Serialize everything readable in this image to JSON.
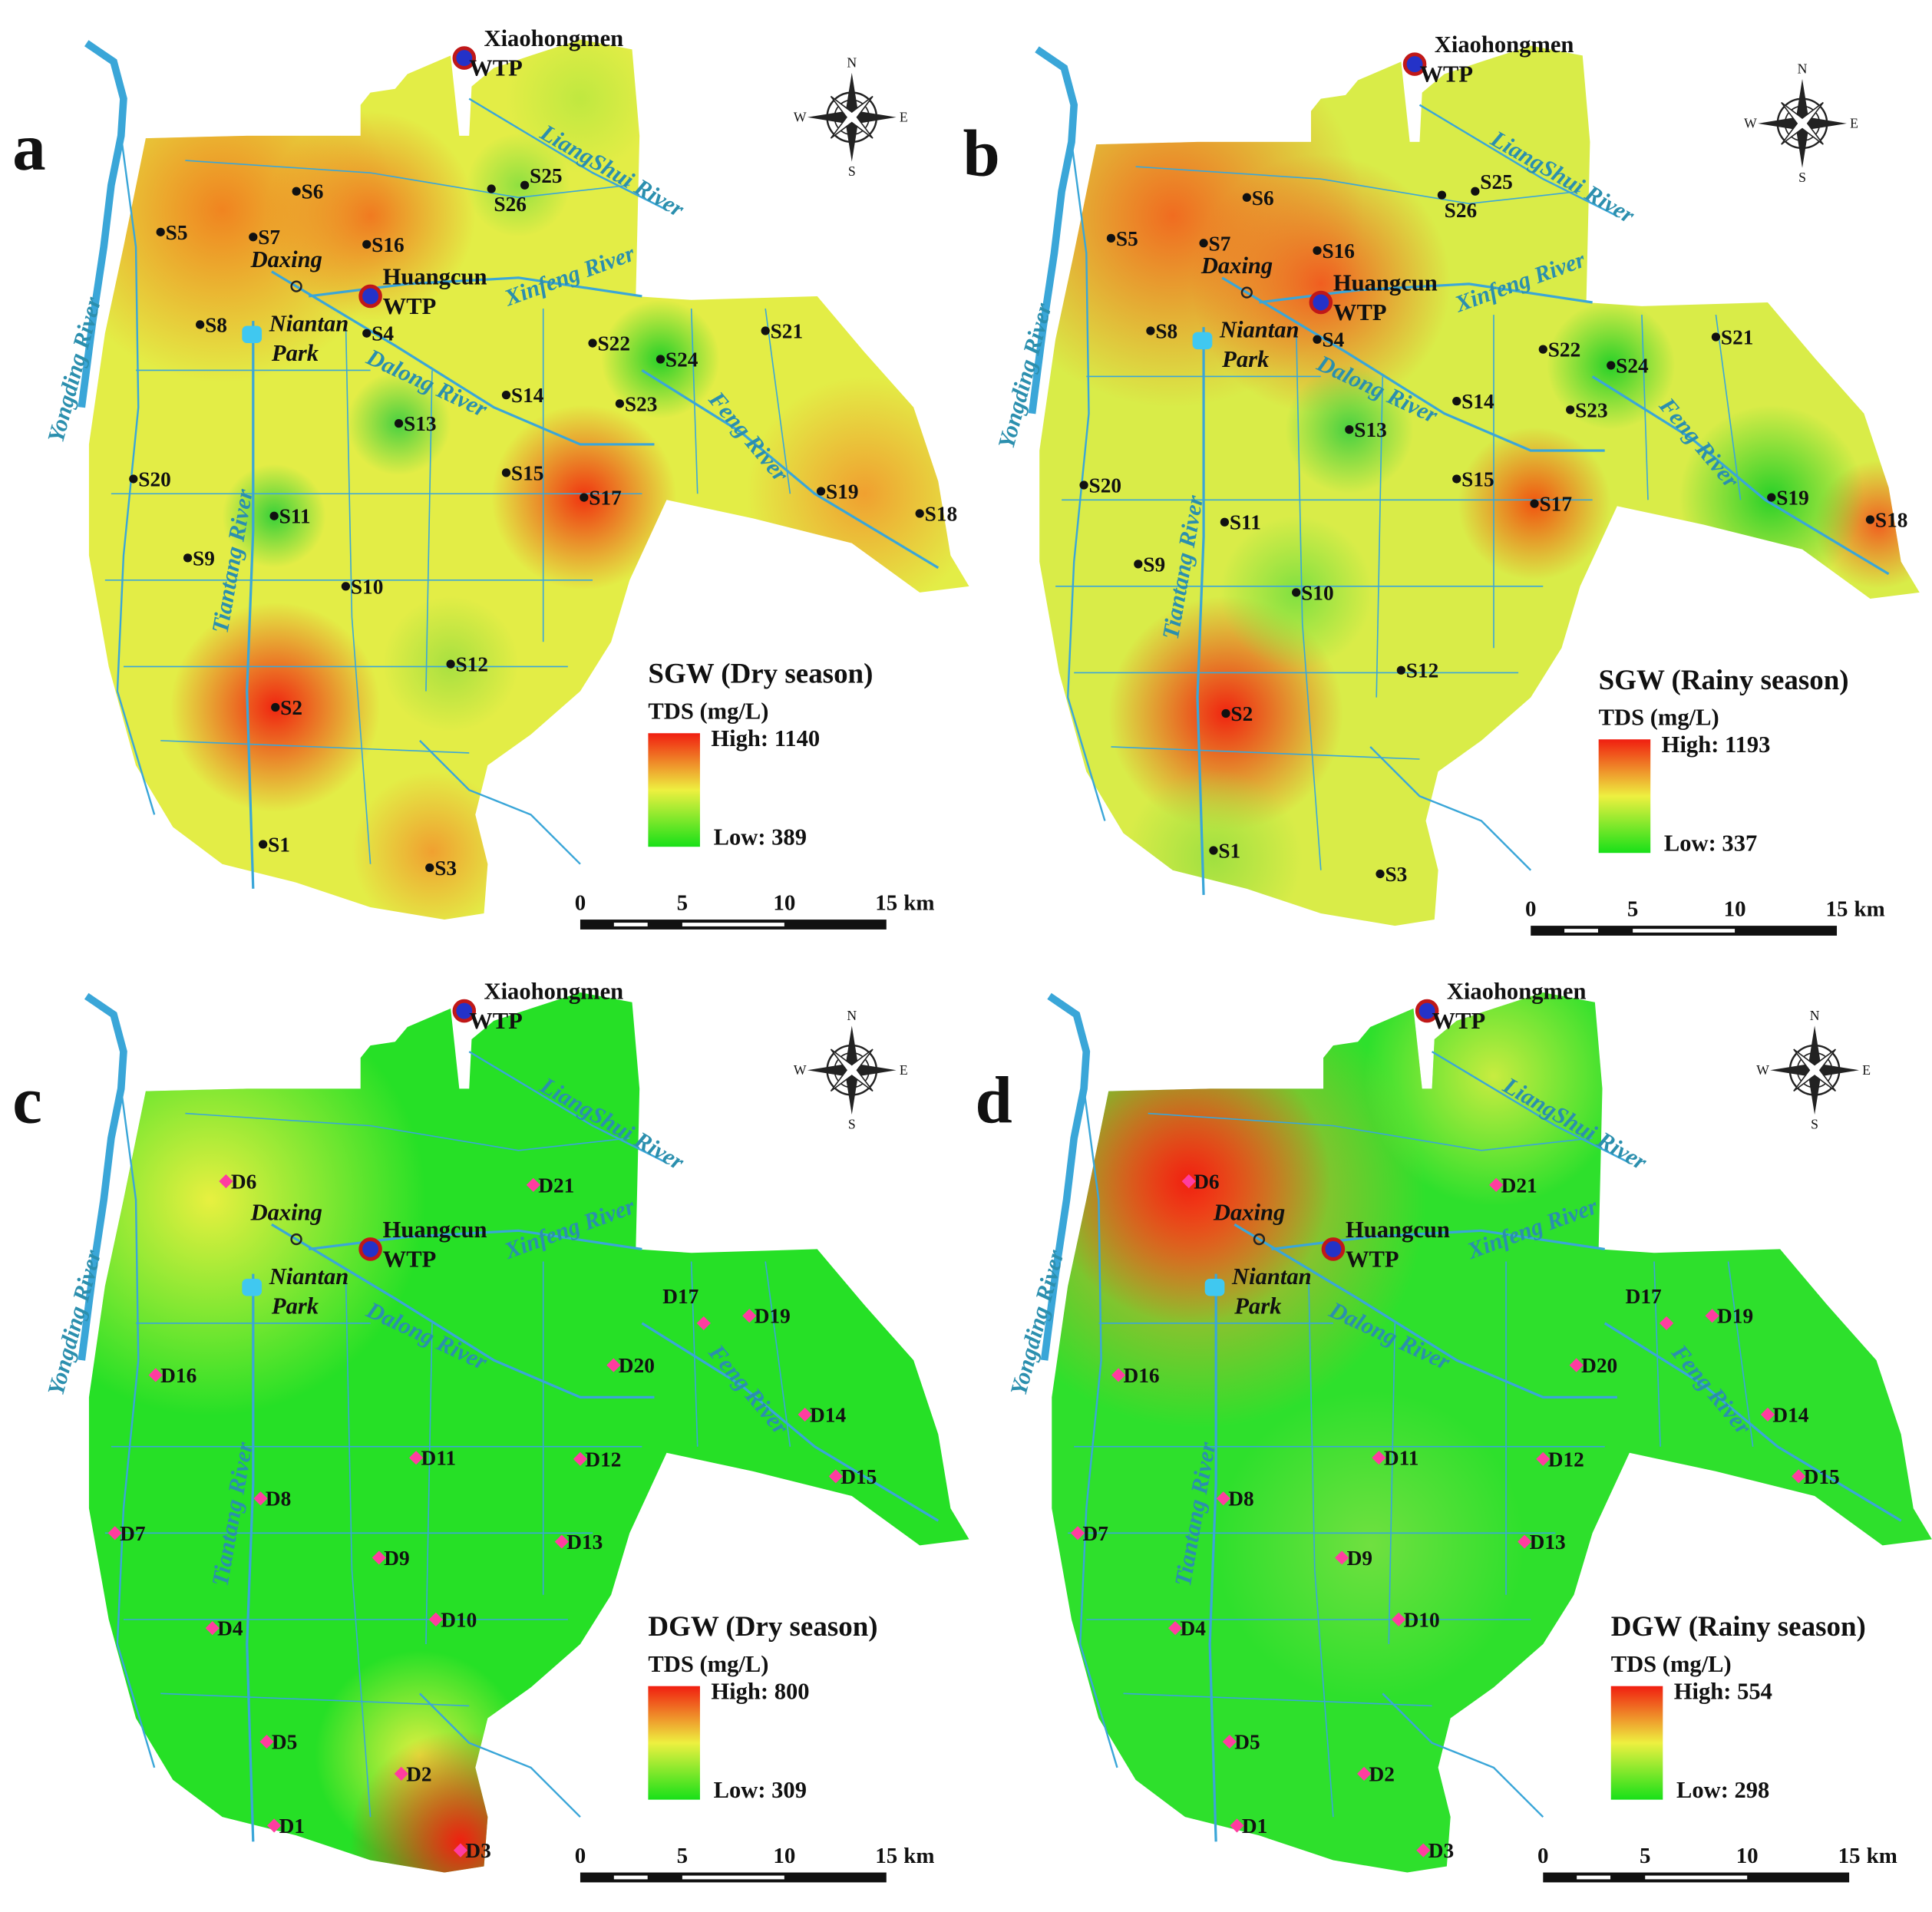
{
  "places": {
    "xiaohongmen": "Xiaohongmen",
    "wtp": "WTP",
    "daxing": "Daxing",
    "huangcun": "Huangcun",
    "niantan": "Niantan",
    "park": "Park"
  },
  "rivers": [
    "Yongding River",
    "Tiantang River",
    "Dalong River",
    "Xinfeng River",
    "LiangShui River",
    "Feng River"
  ],
  "compass": {
    "n": "N",
    "e": "E",
    "s": "S",
    "w": "W"
  },
  "scale_bar": {
    "ticks": [
      0,
      5,
      10,
      15
    ],
    "unit": "km"
  },
  "panels": [
    {
      "letter": "a",
      "legend_title": "SGW (Dry season)",
      "legend_unit": "TDS (mg/L)",
      "high": "High: 1140",
      "low": "Low: 389",
      "sites": [
        "S1",
        "S2",
        "S3",
        "S4",
        "S5",
        "S6",
        "S7",
        "S8",
        "S9",
        "S10",
        "S11",
        "S12",
        "S13",
        "S14",
        "S15",
        "S16",
        "S17",
        "S18",
        "S19",
        "S20",
        "S21",
        "S22",
        "S23",
        "S24",
        "S25",
        "S26"
      ]
    },
    {
      "letter": "b",
      "legend_title": "SGW (Rainy season)",
      "legend_unit": "TDS (mg/L)",
      "high": "High: 1193",
      "low": "Low: 337",
      "sites": [
        "S1",
        "S2",
        "S3",
        "S4",
        "S5",
        "S6",
        "S7",
        "S8",
        "S9",
        "S10",
        "S11",
        "S12",
        "S13",
        "S14",
        "S15",
        "S16",
        "S17",
        "S18",
        "S19",
        "S20",
        "S21",
        "S22",
        "S23",
        "S24",
        "S25",
        "S26"
      ]
    },
    {
      "letter": "c",
      "legend_title": "DGW (Dry season)",
      "legend_unit": "TDS (mg/L)",
      "high": "High: 800",
      "low": "Low: 309",
      "sites": [
        "D1",
        "D2",
        "D3",
        "D4",
        "D5",
        "D6",
        "D7",
        "D8",
        "D9",
        "D10",
        "D11",
        "D12",
        "D13",
        "D14",
        "D15",
        "D16",
        "D17",
        "D19",
        "D20",
        "D21"
      ]
    },
    {
      "letter": "d",
      "legend_title": "DGW (Rainy season)",
      "legend_unit": "TDS (mg/L)",
      "high": "High: 554",
      "low": "Low: 298",
      "sites": [
        "D1",
        "D2",
        "D3",
        "D4",
        "D5",
        "D6",
        "D7",
        "D8",
        "D9",
        "D10",
        "D11",
        "D12",
        "D13",
        "D14",
        "D15",
        "D16",
        "D17",
        "D19",
        "D20",
        "D21"
      ]
    }
  ]
}
